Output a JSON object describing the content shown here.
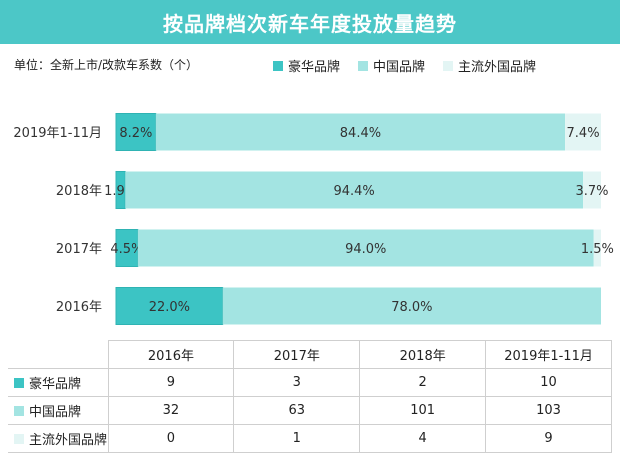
{
  "header": {
    "title": "按品牌档次新车年度投放量趋势"
  },
  "unit_label": "单位：全新上市/改款车系数（个）",
  "colors": {
    "luxury": "#3cc4c4",
    "chinese": "#a3e4e2",
    "foreign": "#e3f5f4"
  },
  "chart_data": {
    "type": "bar",
    "orientation": "horizontal",
    "stacked": true,
    "percent": true,
    "title": "按品牌档次新车年度投放量趋势",
    "categories": [
      "2019年1-11月",
      "2018年",
      "2017年",
      "2016年"
    ],
    "series": [
      {
        "name": "豪华品牌",
        "values": [
          8.2,
          1.9,
          4.5,
          22.0
        ],
        "labels": [
          "8.2%",
          "1.9%",
          "4.5%",
          "22.0%"
        ]
      },
      {
        "name": "中国品牌",
        "values": [
          84.4,
          94.4,
          94.0,
          78.0
        ],
        "labels": [
          "84.4%",
          "94.4%",
          "94.0%",
          "78.0%"
        ]
      },
      {
        "name": "主流外国品牌",
        "values": [
          7.4,
          3.7,
          1.5,
          0.0
        ],
        "labels": [
          "7.4%",
          "3.7%",
          "1.5%",
          ""
        ]
      }
    ],
    "xlim": [
      0,
      100
    ]
  },
  "table": {
    "columns": [
      "2016年",
      "2017年",
      "2018年",
      "2019年1-11月"
    ],
    "rows": [
      {
        "name": "豪华品牌",
        "values": [
          "9",
          "3",
          "2",
          "10"
        ]
      },
      {
        "name": "中国品牌",
        "values": [
          "32",
          "63",
          "101",
          "103"
        ]
      },
      {
        "name": "主流外国品牌",
        "values": [
          "0",
          "1",
          "4",
          "9"
        ]
      }
    ]
  }
}
